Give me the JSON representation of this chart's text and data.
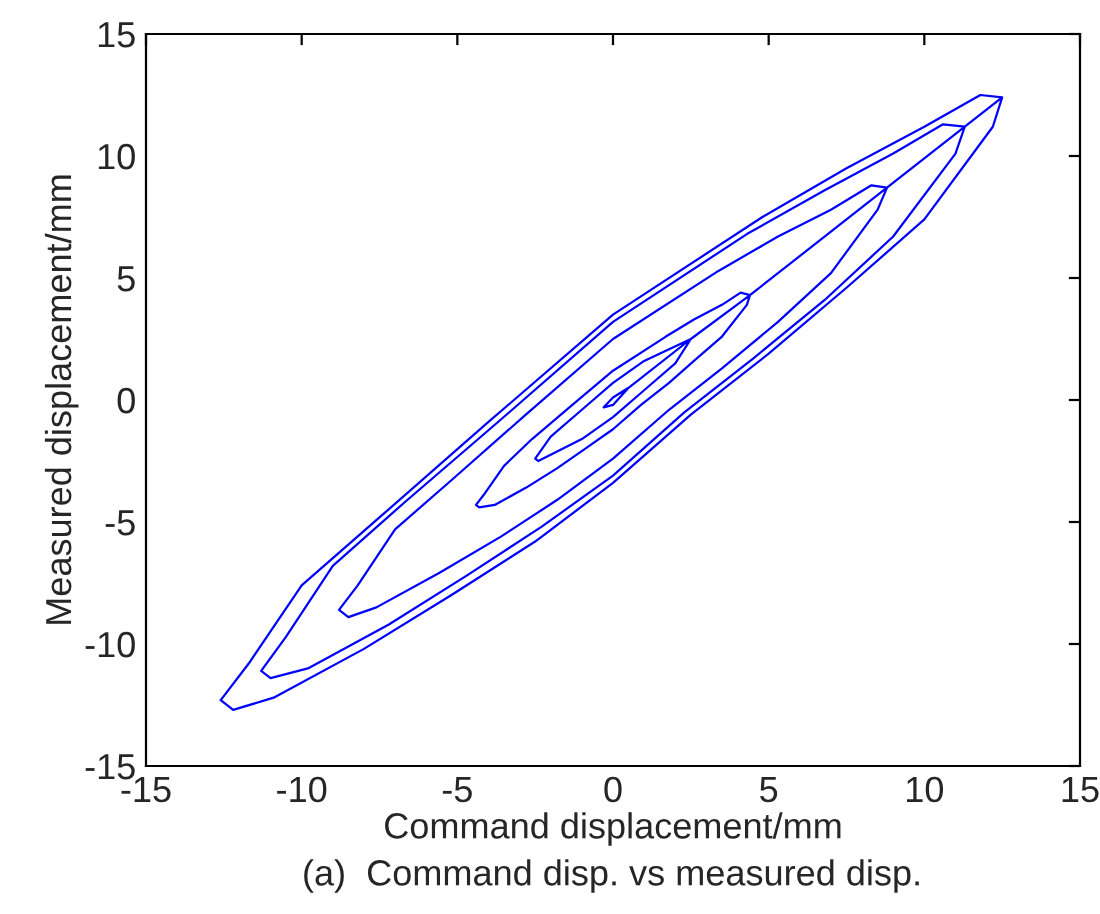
{
  "chart_data": {
    "type": "line",
    "xlabel": "Command displacement/mm",
    "ylabel": "Measured displacement/mm",
    "annotations": [
      "(a)  Command disp. vs measured disp."
    ],
    "xlim": [
      -15,
      15
    ],
    "ylim": [
      -15,
      15
    ],
    "xticks": [
      -15,
      -10,
      -5,
      0,
      5,
      10,
      15
    ],
    "yticks": [
      -15,
      -10,
      -5,
      0,
      5,
      10,
      15
    ],
    "grid": false,
    "series": [
      {
        "color": "#0000ff",
        "x": [
          12.5,
          12.2,
          10,
          7.5,
          5,
          2.5,
          0,
          -2.5,
          -5.2,
          -8,
          -10.9,
          -12.2,
          -12.6,
          -11.7,
          -10,
          -7.4,
          -4,
          0,
          4.8,
          7.5,
          10,
          11.8,
          12.5,
          11.3,
          11,
          9,
          6.8,
          4.5,
          2.3,
          0,
          -2.3,
          -4.7,
          -7.2,
          -9.8,
          -11,
          -11.3,
          -10.5,
          -9,
          -6.7,
          -3.6,
          0,
          4.3,
          6.8,
          9,
          10.6,
          11.3,
          8.8,
          8.5,
          7,
          5.3,
          3.5,
          1.8,
          0,
          -1.8,
          -3.6,
          -5.6,
          -7.6,
          -8.5,
          -8.8,
          -8.2,
          -7,
          -5.2,
          -2.8,
          0,
          3.4,
          5.3,
          7,
          8.3,
          8.8,
          4.4,
          4.3,
          3.5,
          2.6,
          1.8,
          0.9,
          0,
          -0.9,
          -1.8,
          -2.8,
          -3.8,
          -4.3,
          -4.4,
          -4.1,
          -3.5,
          -2.6,
          -1.4,
          0,
          1.7,
          2.6,
          3.5,
          4.1,
          4.4,
          2.5,
          2,
          1,
          0,
          -1,
          -2.4,
          -2.5,
          -2,
          -1,
          0,
          1,
          2.5,
          0.5,
          0,
          -0.3,
          0,
          0.5
        ],
        "values": [
          12.4,
          11.2,
          7.4,
          4.6,
          1.9,
          -0.6,
          -3.4,
          -5.8,
          -8,
          -10.2,
          -12.2,
          -12.7,
          -12.3,
          -10.8,
          -7.6,
          -4.7,
          -0.9,
          3.5,
          7.5,
          9.5,
          11.2,
          12.5,
          12.4,
          11.2,
          10.1,
          6.7,
          4.1,
          1.7,
          -0.5,
          -3.1,
          -5.2,
          -7.2,
          -9.2,
          -11,
          -11.4,
          -11.1,
          -9.7,
          -6.8,
          -4.2,
          -0.8,
          3.2,
          6.8,
          8.6,
          10.1,
          11.3,
          11.2,
          8.7,
          7.8,
          5.2,
          3.2,
          1.3,
          -0.4,
          -2.4,
          -4.1,
          -5.6,
          -7.1,
          -8.5,
          -8.9,
          -8.6,
          -7.6,
          -5.3,
          -3.3,
          -0.6,
          2.5,
          5.3,
          6.7,
          7.8,
          8.8,
          8.7,
          4.3,
          3.9,
          2.6,
          1.6,
          0.7,
          -0.2,
          -1.2,
          -2,
          -2.8,
          -3.6,
          -4.3,
          -4.4,
          -4.3,
          -3.8,
          -2.7,
          -1.6,
          -0.3,
          1.2,
          2.6,
          3.3,
          3.9,
          4.4,
          4.3,
          2.5,
          1.5,
          0.4,
          -0.7,
          -1.6,
          -2.5,
          -2.4,
          -1.5,
          -0.4,
          0.7,
          1.6,
          2.5,
          0.5,
          -0.2,
          -0.3,
          0.1,
          0.5
        ]
      }
    ]
  }
}
